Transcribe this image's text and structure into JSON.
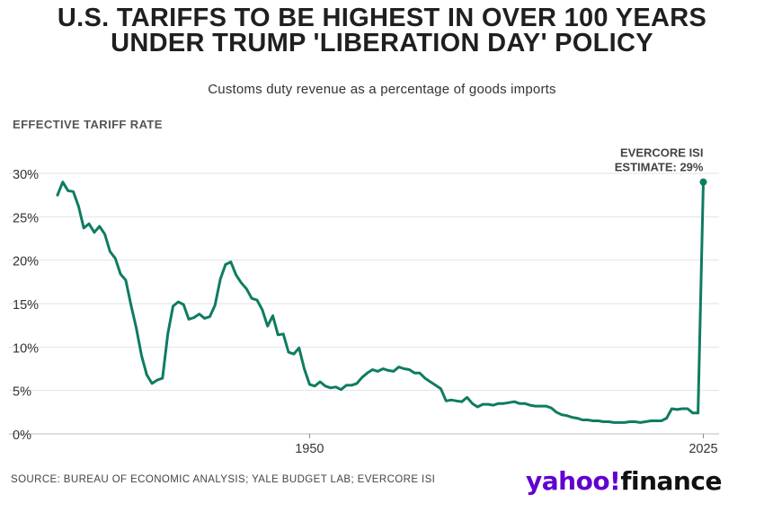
{
  "headline": "U.S. TARIFFS TO BE HIGHEST IN OVER 100 YEARS UNDER TRUMP 'LIBERATION DAY' POLICY",
  "subtitle": "Customs duty revenue as a percentage of goods imports",
  "chart_label": "EFFECTIVE TARIFF RATE",
  "source": "SOURCE: BUREAU OF ECONOMIC ANALYSIS; YALE BUDGET LAB; EVERCORE ISI",
  "logo": {
    "part1": "yahoo!",
    "part2": "finance"
  },
  "colors": {
    "line": "#0e7c61",
    "grid": "#e2e2e2",
    "axis": "#555555",
    "logo_purple": "#6001d2"
  },
  "chart_data": {
    "type": "line",
    "title": "EFFECTIVE TARIFF RATE",
    "x_ticks": [
      1950,
      2025
    ],
    "x_tick_labels": [
      "1950",
      "2025"
    ],
    "y_ticks": [
      0,
      5,
      10,
      15,
      20,
      25,
      30
    ],
    "y_tick_labels": [
      "0%",
      "5%",
      "10%",
      "15%",
      "20%",
      "25%",
      "30%"
    ],
    "xlim": [
      1902,
      2028
    ],
    "ylim": [
      0,
      30
    ],
    "grid": "horizontal",
    "annotation": {
      "text_line1": "EVERCORE ISI",
      "text_line2": "ESTIMATE: 29%",
      "x": 2025,
      "y": 29
    },
    "series": [
      {
        "x": [
          1902,
          1903,
          1904,
          1905,
          1906,
          1907,
          1908,
          1909,
          1910,
          1911,
          1912,
          1913,
          1914,
          1915,
          1916,
          1917,
          1918,
          1919,
          1920,
          1921,
          1922,
          1923,
          1924,
          1925,
          1926,
          1927,
          1928,
          1929,
          1930,
          1931,
          1932,
          1933,
          1934,
          1935,
          1936,
          1937,
          1938,
          1939,
          1940,
          1941,
          1942,
          1943,
          1944,
          1945,
          1946,
          1947,
          1948,
          1949,
          1950,
          1951,
          1952,
          1953,
          1954,
          1955,
          1956,
          1957,
          1958,
          1959,
          1960,
          1961,
          1962,
          1963,
          1964,
          1965,
          1966,
          1967,
          1968,
          1969,
          1970,
          1971,
          1972,
          1973,
          1974,
          1975,
          1976,
          1977,
          1978,
          1979,
          1980,
          1981,
          1982,
          1983,
          1984,
          1985,
          1986,
          1987,
          1988,
          1989,
          1990,
          1991,
          1992,
          1993,
          1994,
          1995,
          1996,
          1997,
          1998,
          1999,
          2000,
          2001,
          2002,
          2003,
          2004,
          2005,
          2006,
          2007,
          2008,
          2009,
          2010,
          2011,
          2012,
          2013,
          2014,
          2015,
          2016,
          2017,
          2018,
          2019,
          2020,
          2021,
          2022,
          2023,
          2024,
          2025
        ],
        "values": [
          27.5,
          29,
          28,
          27.9,
          26.2,
          23.7,
          24.2,
          23.2,
          23.9,
          23,
          21,
          20.2,
          18.4,
          17.7,
          14.8,
          12.2,
          9,
          6.8,
          5.8,
          6.2,
          6.4,
          11.5,
          14.7,
          15.2,
          14.9,
          13.2,
          13.4,
          13.8,
          13.3,
          13.5,
          14.8,
          17.8,
          19.5,
          19.8,
          18.3,
          17.4,
          16.7,
          15.6,
          15.4,
          14.3,
          12.4,
          13.6,
          11.4,
          11.5,
          9.4,
          9.2,
          9.9,
          7.5,
          5.7,
          5.5,
          6,
          5.5,
          5.3,
          5.4,
          5.1,
          5.6,
          5.6,
          5.8,
          6.5,
          7,
          7.4,
          7.2,
          7.5,
          7.3,
          7.2,
          7.7,
          7.5,
          7.4,
          7,
          7,
          6.4,
          6,
          5.6,
          5.2,
          3.8,
          3.9,
          3.8,
          3.7,
          4.2,
          3.5,
          3.1,
          3.4,
          3.4,
          3.3,
          3.5,
          3.5,
          3.6,
          3.7,
          3.5,
          3.5,
          3.3,
          3.2,
          3.2,
          3.2,
          3,
          2.5,
          2.2,
          2.1,
          1.9,
          1.8,
          1.6,
          1.6,
          1.5,
          1.5,
          1.4,
          1.4,
          1.3,
          1.3,
          1.3,
          1.4,
          1.4,
          1.3,
          1.4,
          1.5,
          1.5,
          1.5,
          1.8,
          2.9,
          2.8,
          2.9,
          2.9,
          2.4,
          2.4,
          29
        ]
      }
    ]
  }
}
